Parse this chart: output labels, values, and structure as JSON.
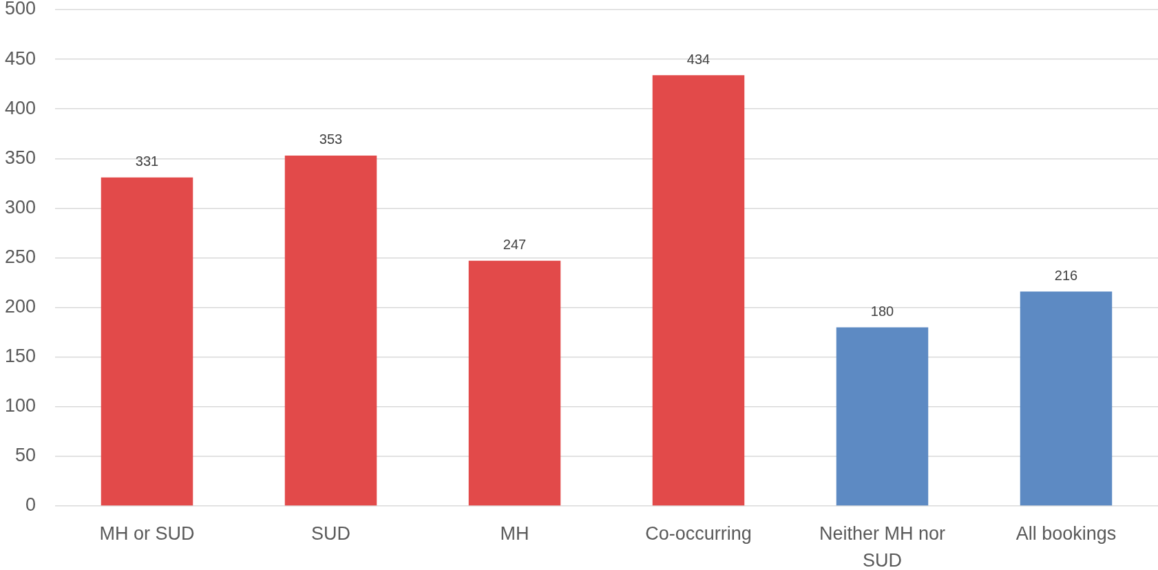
{
  "chart_data": {
    "type": "bar",
    "categories": [
      "MH or SUD",
      "SUD",
      "MH",
      "Co-occurring",
      "Neither MH nor SUD",
      "All bookings"
    ],
    "values": [
      331,
      353,
      247,
      434,
      180,
      216
    ],
    "colors": [
      "#e24a4a",
      "#e24a4a",
      "#e24a4a",
      "#e24a4a",
      "#5d8ac3",
      "#5d8ac3"
    ],
    "ylim": [
      0,
      500
    ],
    "yticks": [
      0,
      50,
      100,
      150,
      200,
      250,
      300,
      350,
      400,
      450,
      500
    ],
    "grid": "y",
    "data_labels": true
  }
}
